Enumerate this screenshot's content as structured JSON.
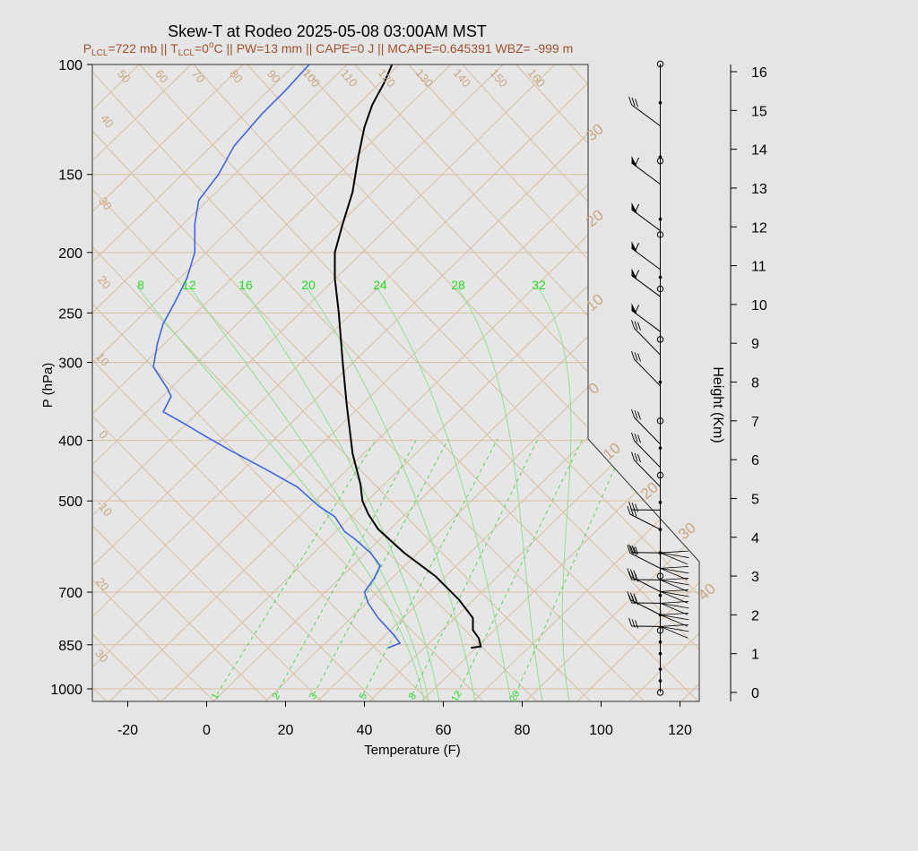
{
  "chart_data": {
    "type": "line",
    "title": "Skew-T at Rodeo 2025-05-08 03:00AM MST",
    "subtitle": {
      "plcl_prefix": "P",
      "plcl_sub": "LCL",
      "plcl_value": "=722 mb || T",
      "tlcl_sub": "LCL",
      "tlcl_value": "=0",
      "deg_sup": "o",
      "rest": "C || PW=13 mm || CAPE=0 J || MCAPE=0.645391 WBZ= -999 m"
    },
    "xlabel": "Temperature (F)",
    "ylabel": "P (hPa)",
    "y2label": "Height (Km)",
    "xlim": [
      -28,
      125
    ],
    "ylim": [
      1030,
      100
    ],
    "x_ticks": [
      -20,
      0,
      20,
      40,
      60,
      80,
      100,
      120
    ],
    "y_ticks": [
      100,
      150,
      200,
      250,
      300,
      400,
      500,
      700,
      850,
      1000
    ],
    "height_ticks": [
      0,
      1,
      2,
      3,
      4,
      5,
      6,
      7,
      8,
      9,
      10,
      11,
      12,
      13,
      14,
      15,
      16
    ],
    "mixing_ratio_labels_top": [
      "8",
      "12",
      "16",
      "20",
      "24",
      "28",
      "32"
    ],
    "mixing_ratio_labels_bottom": [
      "1",
      "2",
      "3",
      "5",
      "8",
      "12",
      "20"
    ],
    "isotherm_labels_top": [
      "50",
      "60",
      "70",
      "80",
      "90",
      "100",
      "110",
      "120",
      "130",
      "140",
      "150",
      "160"
    ],
    "isotherm_labels_left": [
      "40",
      "30",
      "20",
      "10",
      "0",
      "-10",
      "20",
      "30"
    ],
    "isotherm_labels_right": [
      "30",
      "20",
      "10",
      "0",
      "10",
      "20",
      "30",
      "40"
    ],
    "series": [
      {
        "name": "temperature",
        "color": "#000000",
        "points": [
          [
            67,
            860
          ],
          [
            69.5,
            855
          ],
          [
            69,
            830
          ],
          [
            67.5,
            805
          ],
          [
            67.5,
            770
          ],
          [
            64,
            720
          ],
          [
            58,
            660
          ],
          [
            50,
            605
          ],
          [
            43.5,
            555
          ],
          [
            41,
            525
          ],
          [
            39.5,
            500
          ],
          [
            39,
            470
          ],
          [
            37,
            420
          ],
          [
            35.5,
            350
          ],
          [
            34.5,
            300
          ],
          [
            33.5,
            250
          ],
          [
            32.5,
            220
          ],
          [
            32.5,
            200
          ],
          [
            34.5,
            180
          ],
          [
            37,
            160
          ],
          [
            38.5,
            140
          ],
          [
            40,
            126
          ],
          [
            42,
            116
          ],
          [
            45,
            107
          ],
          [
            47,
            100
          ]
        ]
      },
      {
        "name": "dewpoint",
        "color": "#3a66e8",
        "points": [
          [
            46,
            860
          ],
          [
            49,
            845
          ],
          [
            47.5,
            820
          ],
          [
            43.5,
            770
          ],
          [
            41,
            730
          ],
          [
            40,
            700
          ],
          [
            42.5,
            665
          ],
          [
            44,
            635
          ],
          [
            41.5,
            605
          ],
          [
            37.5,
            575
          ],
          [
            35,
            560
          ],
          [
            32.5,
            530
          ],
          [
            28.5,
            510
          ],
          [
            23,
            475
          ],
          [
            15,
            445
          ],
          [
            6,
            415
          ],
          [
            0,
            395
          ],
          [
            -6,
            375
          ],
          [
            -11,
            360
          ],
          [
            -9,
            340
          ],
          [
            -10,
            330
          ],
          [
            -13.5,
            305
          ],
          [
            -12.5,
            280
          ],
          [
            -11,
            260
          ],
          [
            -8,
            240
          ],
          [
            -5,
            220
          ],
          [
            -3,
            200
          ],
          [
            -3,
            180
          ],
          [
            -2,
            165
          ],
          [
            3,
            150
          ],
          [
            7,
            135
          ],
          [
            14,
            120
          ],
          [
            20,
            110
          ],
          [
            26,
            100
          ]
        ]
      }
    ],
    "wind_profile": {
      "x_position_f": 115,
      "markers": [
        {
          "km": 0.0,
          "kind": "circle"
        },
        {
          "km": 0.3,
          "kind": "dot"
        },
        {
          "km": 0.6,
          "kind": "dot"
        },
        {
          "km": 1.0,
          "kind": "dot"
        },
        {
          "km": 1.3,
          "kind": "dot"
        },
        {
          "km": 1.6,
          "kind": "circle"
        },
        {
          "km": 2.0,
          "kind": "dot"
        },
        {
          "km": 2.5,
          "kind": "dot"
        },
        {
          "km": 3.0,
          "kind": "circle"
        },
        {
          "km": 3.6,
          "kind": "dot"
        },
        {
          "km": 4.2,
          "kind": "dot"
        },
        {
          "km": 4.9,
          "kind": "dot"
        },
        {
          "km": 5.6,
          "kind": "circle"
        },
        {
          "km": 6.3,
          "kind": "dot"
        },
        {
          "km": 7.0,
          "kind": "circle"
        },
        {
          "km": 8.0,
          "kind": "dot"
        },
        {
          "km": 9.1,
          "kind": "circle"
        },
        {
          "km": 10.4,
          "kind": "circle"
        },
        {
          "km": 10.7,
          "kind": "dot"
        },
        {
          "km": 11.8,
          "kind": "circle"
        },
        {
          "km": 12.2,
          "kind": "dot"
        },
        {
          "km": 13.7,
          "kind": "circle"
        },
        {
          "km": 13.8,
          "kind": "dot"
        },
        {
          "km": 15.2,
          "kind": "dot"
        },
        {
          "km": 16.2,
          "kind": "circle"
        }
      ],
      "barbs": [
        {
          "km": 14.6,
          "kind": "feathers"
        },
        {
          "km": 13.1,
          "kind": "flag"
        },
        {
          "km": 11.9,
          "kind": "flag"
        },
        {
          "km": 10.9,
          "kind": "flag"
        },
        {
          "km": 10.2,
          "kind": "flag"
        },
        {
          "km": 9.3,
          "kind": "flag"
        },
        {
          "km": 8.7,
          "kind": "feathers"
        },
        {
          "km": 7.9,
          "kind": "feathers"
        },
        {
          "km": 6.4,
          "kind": "feathers"
        },
        {
          "km": 5.8,
          "kind": "feathers"
        },
        {
          "km": 5.3,
          "kind": "feathers"
        },
        {
          "km": 4.7,
          "kind": "feathers"
        },
        {
          "km": 4.2,
          "kind": "feathers"
        },
        {
          "km": 3.6,
          "kind": "feathers"
        },
        {
          "km": 3.2,
          "kind": "feathers"
        },
        {
          "km": 2.9,
          "kind": "feathers"
        },
        {
          "km": 2.6,
          "kind": "feathers"
        },
        {
          "km": 2.3,
          "kind": "feathers"
        },
        {
          "km": 2.0,
          "kind": "feathers"
        },
        {
          "km": 1.7,
          "kind": "feathers"
        }
      ]
    }
  }
}
